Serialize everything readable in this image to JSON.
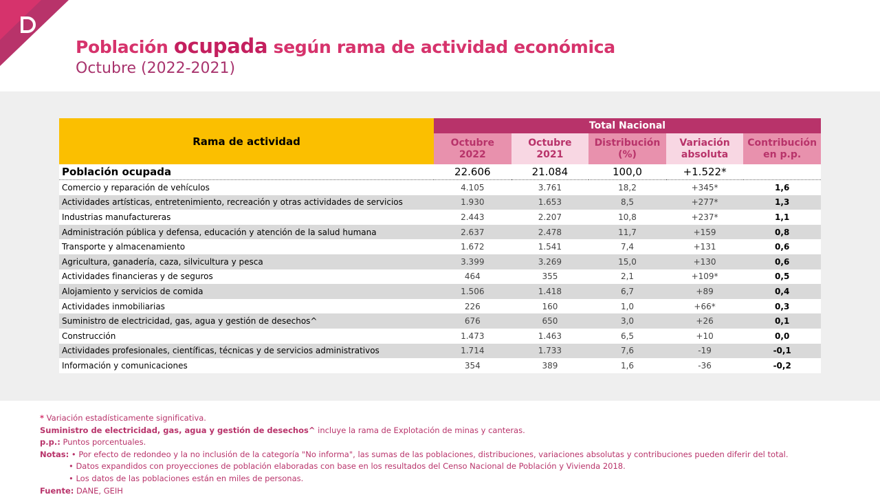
{
  "header": {
    "title_start": "Población",
    "title_emphasis": "ocupada",
    "title_end": "según rama de actividad económica",
    "subtitle": "Octubre (2022-2021)"
  },
  "table": {
    "row_header": "Rama de actividad",
    "group_header": "Total Nacional",
    "columns": [
      "Octubre 2022",
      "Octubre 2021",
      "Distribución (%)",
      "Variación absoluta",
      "Contribución en p.p."
    ],
    "total": [
      "Población ocupada",
      "22.606",
      "21.084",
      "100,0",
      "+1.522*",
      ""
    ],
    "rows": [
      [
        "Comercio y reparación de vehículos",
        "4.105",
        "3.761",
        "18,2",
        "+345*",
        "1,6"
      ],
      [
        "Actividades artísticas, entretenimiento, recreación y otras actividades de servicios",
        "1.930",
        "1.653",
        "8,5",
        "+277*",
        "1,3"
      ],
      [
        "Industrias manufactureras",
        "2.443",
        "2.207",
        "10,8",
        "+237*",
        "1,1"
      ],
      [
        "Administración pública y defensa, educación y atención de la salud humana",
        "2.637",
        "2.478",
        "11,7",
        "+159",
        "0,8"
      ],
      [
        "Transporte y almacenamiento",
        "1.672",
        "1.541",
        "7,4",
        "+131",
        "0,6"
      ],
      [
        "Agricultura, ganadería, caza, silvicultura y pesca",
        "3.399",
        "3.269",
        "15,0",
        "+130",
        "0,6"
      ],
      [
        "Actividades financieras y de seguros",
        "464",
        "355",
        "2,1",
        "+109*",
        "0,5"
      ],
      [
        "Alojamiento y servicios de comida",
        "1.506",
        "1.418",
        "6,7",
        "+89",
        "0,4"
      ],
      [
        "Actividades inmobiliarias",
        "226",
        "160",
        "1,0",
        "+66*",
        "0,3"
      ],
      [
        "Suministro de electricidad, gas, agua y gestión de desechos^",
        "676",
        "650",
        "3,0",
        "+26",
        "0,1"
      ],
      [
        "Construcción",
        "1.473",
        "1.463",
        "6,5",
        "+10",
        "0,0"
      ],
      [
        "Actividades profesionales, científicas, técnicas y de servicios administrativos",
        "1.714",
        "1.733",
        "7,6",
        "-19",
        "-0,1"
      ],
      [
        "Información y comunicaciones",
        "354",
        "389",
        "1,6",
        "-36",
        "-0,2"
      ]
    ]
  },
  "notes": {
    "significance": {
      "marker": "*",
      "text": "Variación estadísticamente significativa."
    },
    "suministro": {
      "label": "Suministro de electricidad, gas, agua y gestión de desechos^",
      "text": "incluye la rama de Explotación de minas y canteras."
    },
    "pp": {
      "label": "p.p.:",
      "text": "Puntos porcentuales."
    },
    "notas": {
      "label": "Notas:",
      "items": [
        "Por efecto de redondeo y la no inclusión de la categoría \"No informa\", las sumas de las poblaciones, distribuciones, variaciones absolutas y contribuciones pueden diferir del total.",
        "Datos expandidos con proyecciones de población elaboradas con base en los resultados del Censo Nacional de Población y Vivienda 2018.",
        "Los datos de las poblaciones están en miles de personas."
      ]
    },
    "fuente": {
      "label": "Fuente:",
      "text": "DANE, GEIH"
    }
  }
}
